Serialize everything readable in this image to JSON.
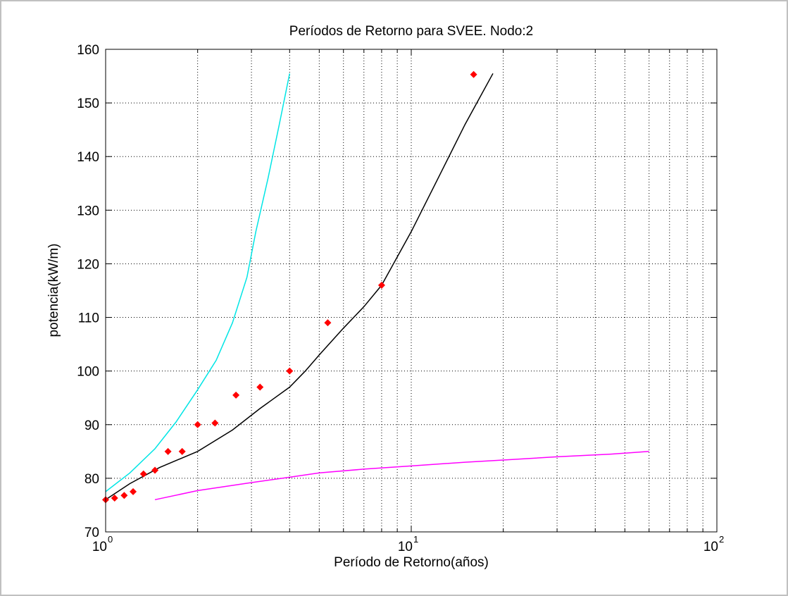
{
  "chart_data": {
    "type": "scatter",
    "title": "Períodos de Retorno para SVEE. Nodo:2",
    "xlabel": "Período de Retorno(años)",
    "ylabel": "potencia(kW/m)",
    "xscale": "log",
    "xlim": [
      1,
      100
    ],
    "ylim": [
      70,
      160
    ],
    "grid": true,
    "x_ticks": [
      {
        "value": 1,
        "base": "10",
        "exp": "0"
      },
      {
        "value": 10,
        "base": "10",
        "exp": "1"
      },
      {
        "value": 100,
        "base": "10",
        "exp": "2"
      }
    ],
    "y_ticks": [
      70,
      80,
      90,
      100,
      110,
      120,
      130,
      140,
      150,
      160
    ],
    "series": [
      {
        "kind": "line",
        "color": "#00e5e5",
        "x": [
          1.0,
          1.2,
          1.45,
          1.7,
          2.0,
          2.3,
          2.6,
          2.9,
          3.1,
          3.4,
          3.7,
          4.0
        ],
        "y": [
          77.5,
          81,
          85.5,
          90.5,
          96.5,
          102,
          109,
          117.5,
          126,
          136,
          146,
          155.5
        ]
      },
      {
        "kind": "line",
        "color": "#000000",
        "x": [
          1.0,
          1.2,
          1.5,
          2.0,
          2.6,
          3.2,
          4.0,
          4.5,
          5.0,
          6.0,
          7.0,
          8.0,
          10.0,
          12.5,
          15.0,
          18.5
        ],
        "y": [
          76,
          79,
          82,
          85,
          89,
          93,
          97,
          100,
          103,
          108,
          112,
          116,
          126,
          137,
          146,
          155.5
        ]
      },
      {
        "kind": "line",
        "color": "#ff00ff",
        "x": [
          1.45,
          2.0,
          3.0,
          4.0,
          5.0,
          7.0,
          10.0,
          15.0,
          20.0,
          30.0,
          45.0,
          60.0
        ],
        "y": [
          76,
          77.7,
          79.2,
          80.2,
          81.0,
          81.7,
          82.3,
          83.0,
          83.4,
          84.0,
          84.5,
          85.0
        ]
      },
      {
        "kind": "markers",
        "color": "#ff0000",
        "x": [
          1.0,
          1.07,
          1.15,
          1.23,
          1.33,
          1.45,
          1.6,
          1.78,
          2.0,
          2.28,
          2.67,
          3.2,
          4.0,
          5.33,
          8.0,
          16.0
        ],
        "y": [
          76,
          76.3,
          76.8,
          77.5,
          80.8,
          81.5,
          85,
          85,
          90,
          90.3,
          95.5,
          97,
          100,
          109,
          116,
          155.3
        ]
      }
    ]
  }
}
